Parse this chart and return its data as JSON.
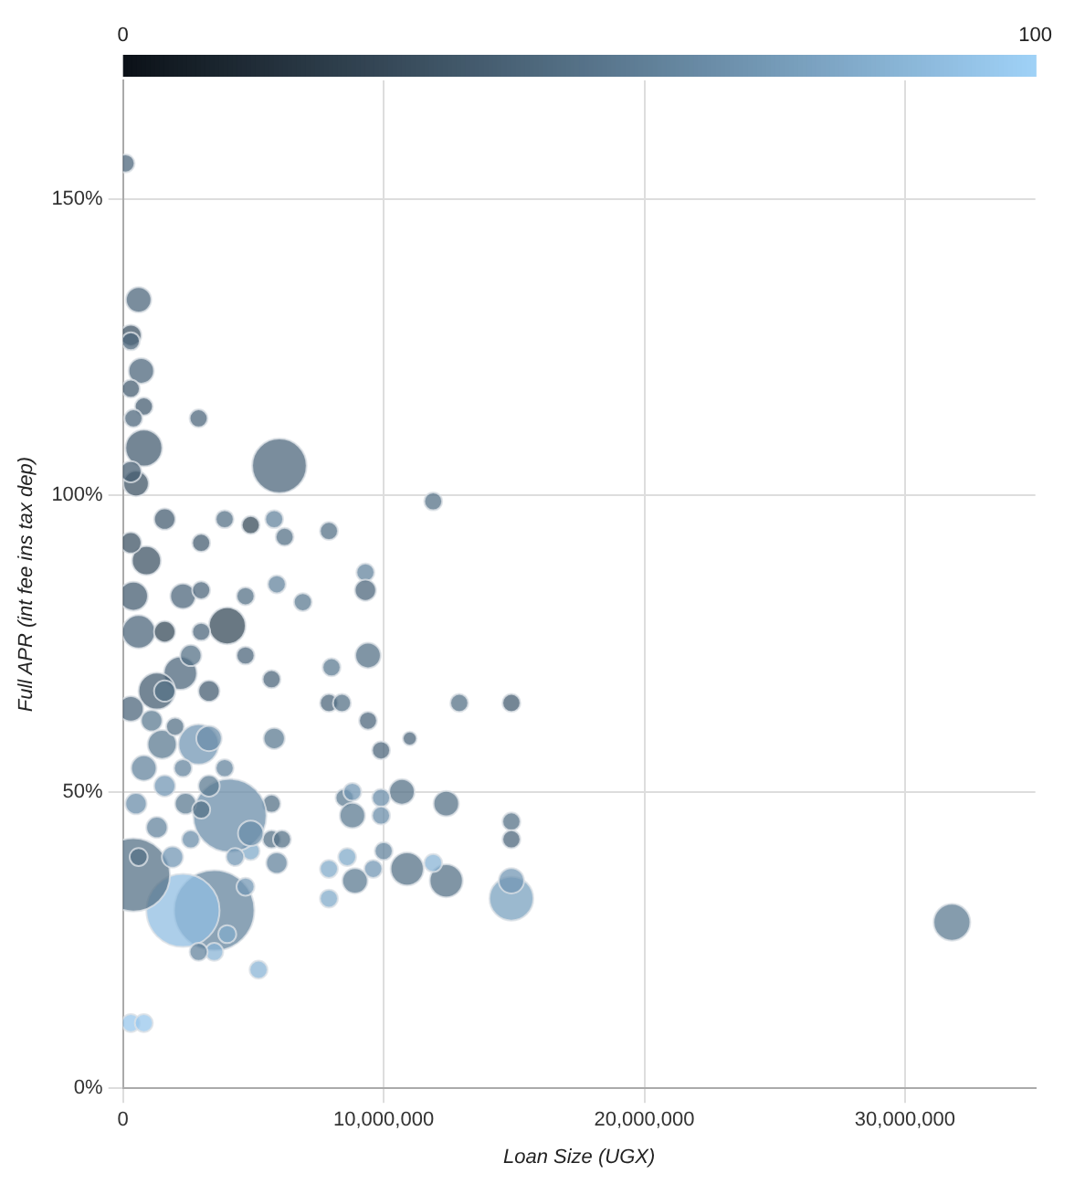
{
  "chart_data": {
    "type": "bubble",
    "xlabel": "Loan Size (UGX)",
    "ylabel": "Full APR (int fee ins tax dep)",
    "xlim": [
      0,
      35000000
    ],
    "xticks": [
      0,
      {
        "value": 10000000,
        "label": "10,000,000"
      },
      {
        "value": 20000000,
        "label": "20,000,000"
      },
      {
        "value": 30000000,
        "label": "30,000,000"
      }
    ],
    "ylim": [
      0,
      170
    ],
    "yticks": [
      {
        "value": 0,
        "label": "0%"
      },
      {
        "value": 50,
        "label": "50%"
      },
      {
        "value": 100,
        "label": "100%"
      },
      {
        "value": 150,
        "label": "150%"
      }
    ],
    "clim": [
      0,
      100
    ],
    "cticks": [
      0,
      100
    ],
    "grid": true,
    "x": [
      100000,
      600000,
      300000,
      300000,
      700000,
      300000,
      800000,
      2900000,
      6000000,
      11900000,
      7900000,
      5800000,
      4900000,
      3900000,
      9300000,
      6200000,
      5900000,
      6900000,
      9300000,
      9400000,
      8000000,
      7900000,
      8400000,
      9400000,
      12900000,
      14900000,
      9900000,
      10700000,
      8500000,
      9900000,
      8800000,
      11000000,
      12400000,
      14900000,
      14900000,
      10900000,
      12400000,
      14900000,
      14900000,
      11900000,
      8900000,
      7900000,
      7900000,
      9600000,
      10000000,
      8600000,
      8800000,
      9900000,
      5700000,
      5700000,
      6100000,
      5900000,
      4900000,
      3500000,
      2300000,
      4100000,
      400000,
      4700000,
      4900000,
      4300000,
      2900000,
      3300000,
      4000000,
      2200000,
      1300000,
      600000,
      900000,
      800000,
      500000,
      1600000,
      2300000,
      3000000,
      1500000,
      800000,
      1600000,
      2400000,
      500000,
      1300000,
      1900000,
      600000,
      3000000,
      2600000,
      4000000,
      3500000,
      5200000,
      300000,
      800000,
      2900000,
      1600000,
      2600000,
      3300000,
      300000,
      400000,
      300000,
      1100000,
      2000000,
      2300000,
      3300000,
      3900000,
      3000000,
      1600000,
      3000000,
      4700000,
      4700000,
      5700000,
      5800000,
      31800000,
      400000,
      300000
    ],
    "values": [
      156,
      133,
      127,
      126,
      121,
      118,
      115,
      113,
      105,
      99,
      94,
      96,
      95,
      96,
      87,
      93,
      85,
      82,
      84,
      73,
      71,
      65,
      65,
      62,
      65,
      65,
      57,
      50,
      49,
      49,
      46,
      59,
      48,
      45,
      42,
      37,
      35,
      32,
      35,
      38,
      35,
      32,
      37,
      37,
      40,
      39,
      50,
      46,
      48,
      42,
      42,
      38,
      40,
      30,
      30,
      46,
      36,
      34,
      43,
      39,
      58,
      59,
      78,
      70,
      67,
      77,
      89,
      108,
      102,
      96,
      83,
      84,
      58,
      54,
      51,
      48,
      48,
      44,
      39,
      39,
      47,
      42,
      26,
      23,
      20,
      11,
      11,
      23,
      67,
      73,
      67,
      92,
      83,
      64,
      62,
      61,
      54,
      51,
      54,
      77,
      77,
      92,
      83,
      73,
      69,
      59,
      28,
      113,
      104
    ],
    "sizes": [
      0.05,
      0.1,
      0.07,
      0.05,
      0.1,
      0.05,
      0.05,
      0.05,
      0.46,
      0.05,
      0.05,
      0.05,
      0.05,
      0.05,
      0.05,
      0.05,
      0.05,
      0.05,
      0.07,
      0.1,
      0.05,
      0.05,
      0.05,
      0.05,
      0.05,
      0.05,
      0.05,
      0.1,
      0.05,
      0.05,
      0.1,
      0.03,
      0.1,
      0.05,
      0.05,
      0.17,
      0.17,
      0.3,
      0.1,
      0.05,
      0.1,
      0.05,
      0.05,
      0.05,
      0.05,
      0.05,
      0.05,
      0.05,
      0.05,
      0.05,
      0.05,
      0.07,
      0.05,
      1,
      0.83,
      0.83,
      0.83,
      0.05,
      0.1,
      0.05,
      0.25,
      0.1,
      0.21,
      0.17,
      0.21,
      0.17,
      0.13,
      0.21,
      0.1,
      0.07,
      0.1,
      0.05,
      0.13,
      0.1,
      0.07,
      0.07,
      0.07,
      0.07,
      0.07,
      0.05,
      0.05,
      0.05,
      0.05,
      0.05,
      0.05,
      0.05,
      0.05,
      0.05,
      0.07,
      0.07,
      0.07,
      0.07,
      0.13,
      0.1,
      0.07,
      0.05,
      0.05,
      0.07,
      0.05,
      0.05,
      0.07,
      0.05,
      0.05,
      0.05,
      0.05,
      0.07,
      0.21,
      0.05,
      0.07
    ],
    "cvalues": [
      45,
      45,
      35,
      45,
      45,
      40,
      40,
      45,
      45,
      50,
      50,
      60,
      30,
      50,
      60,
      50,
      60,
      55,
      45,
      50,
      55,
      45,
      50,
      45,
      50,
      40,
      45,
      50,
      55,
      65,
      55,
      45,
      50,
      50,
      45,
      50,
      50,
      75,
      70,
      85,
      55,
      80,
      80,
      70,
      60,
      80,
      70,
      65,
      50,
      50,
      50,
      60,
      80,
      60,
      90,
      65,
      50,
      70,
      65,
      70,
      70,
      65,
      30,
      45,
      40,
      45,
      35,
      40,
      35,
      40,
      45,
      45,
      55,
      60,
      70,
      55,
      65,
      60,
      70,
      50,
      50,
      65,
      80,
      85,
      85,
      95,
      95,
      60,
      50,
      50,
      40,
      35,
      40,
      45,
      55,
      50,
      60,
      55,
      60,
      45,
      30,
      40,
      50,
      45,
      45,
      55,
      55,
      45,
      40
    ]
  }
}
